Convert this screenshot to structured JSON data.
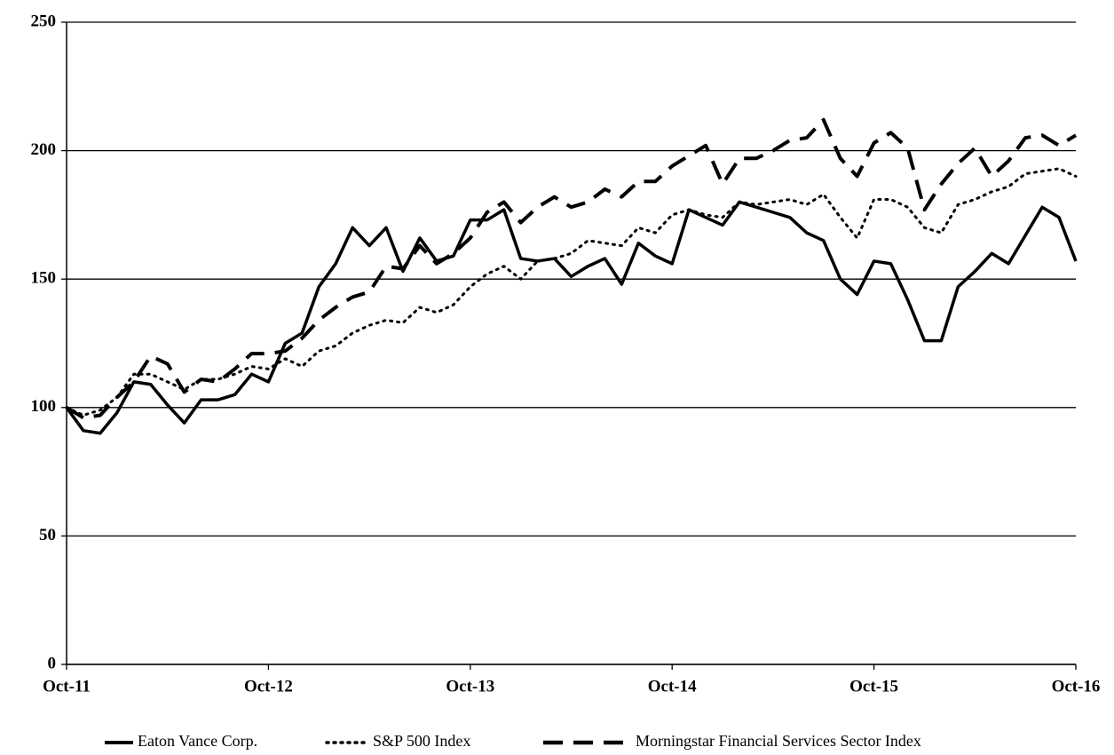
{
  "chart_data": {
    "type": "line",
    "categories": [
      "Oct-11",
      null,
      null,
      null,
      null,
      null,
      null,
      null,
      null,
      null,
      null,
      null,
      "Oct-12",
      null,
      null,
      null,
      null,
      null,
      null,
      null,
      null,
      null,
      null,
      null,
      "Oct-13",
      null,
      null,
      null,
      null,
      null,
      null,
      null,
      null,
      null,
      null,
      null,
      "Oct-14",
      null,
      null,
      null,
      null,
      null,
      null,
      null,
      null,
      null,
      null,
      null,
      "Oct-15",
      null,
      null,
      null,
      null,
      null,
      null,
      null,
      null,
      null,
      null,
      null,
      "Oct-16"
    ],
    "series": [
      {
        "name": "Eaton Vance Corp.",
        "color": "#000000",
        "dash": "solid",
        "values": [
          100,
          91,
          90,
          98,
          110,
          109,
          101,
          94,
          103,
          103,
          105,
          113,
          110,
          125,
          129,
          147,
          156,
          170,
          163,
          170,
          153,
          166,
          157,
          159,
          173,
          173,
          177,
          158,
          157,
          158,
          151,
          155,
          158,
          148,
          164,
          159,
          156,
          177,
          174,
          171,
          180,
          178,
          176,
          174,
          168,
          165,
          150,
          144,
          157,
          156,
          142,
          126,
          126,
          147,
          153,
          160,
          156,
          167,
          178,
          174,
          157
        ]
      },
      {
        "name": "S&P 500 Index",
        "color": "#000000",
        "dash": "dotted",
        "values": [
          100,
          97,
          99,
          104,
          113,
          113,
          110,
          107,
          111,
          111,
          113,
          116,
          115,
          119,
          116,
          122,
          124,
          129,
          132,
          134,
          133,
          139,
          137,
          140,
          147,
          152,
          155,
          150,
          157,
          158,
          160,
          165,
          164,
          163,
          170,
          168,
          175,
          177,
          175,
          174,
          180,
          179,
          180,
          181,
          179,
          183,
          174,
          166,
          181,
          181,
          178,
          170,
          168,
          179,
          181,
          184,
          186,
          191,
          192,
          193,
          190
        ]
      },
      {
        "name": "Morningstar Financial Services Sector Index",
        "color": "#000000",
        "dash": "dashed",
        "values": [
          100,
          96,
          97,
          104,
          110,
          120,
          117,
          106,
          111,
          110,
          115,
          121,
          121,
          122,
          127,
          134,
          139,
          143,
          145,
          155,
          154,
          163,
          156,
          160,
          166,
          176,
          180,
          172,
          178,
          182,
          178,
          180,
          185,
          182,
          188,
          188,
          194,
          198,
          202,
          187,
          197,
          197,
          200,
          204,
          205,
          212,
          197,
          190,
          203,
          207,
          201,
          177,
          187,
          195,
          201,
          190,
          196,
          205,
          206,
          202,
          206
        ]
      }
    ],
    "ylim": [
      0,
      250
    ],
    "yticks": [
      0,
      50,
      100,
      150,
      200,
      250
    ],
    "grid": true,
    "legend": "bottom"
  }
}
